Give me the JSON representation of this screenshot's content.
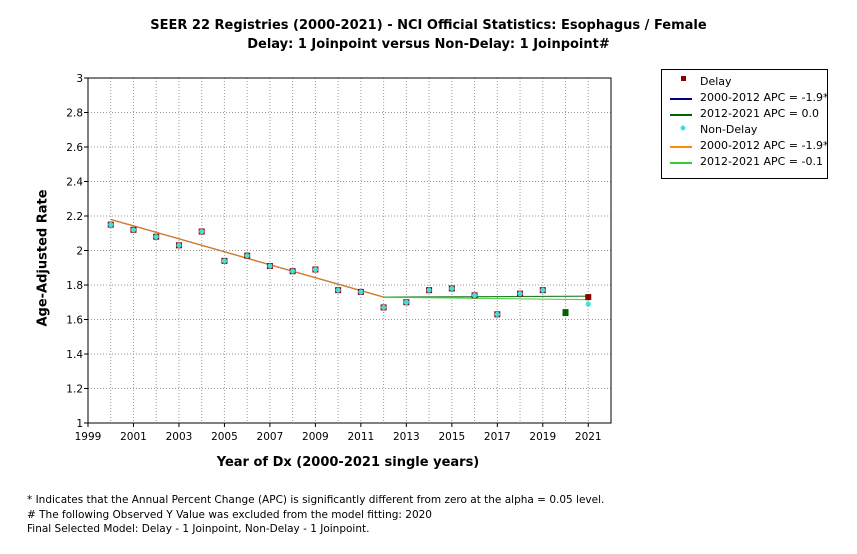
{
  "chart_data": {
    "type": "line",
    "title": "SEER 22 Registries (2000-2021) - NCI Official Statistics: Esophagus / Female",
    "subtitle": "Delay: 1 Joinpoint  versus  Non-Delay: 1 Joinpoint#",
    "xlabel": "Year of Dx (2000-2021 single years)",
    "ylabel": "Age-Adjusted Rate",
    "xlim": [
      1999,
      2022
    ],
    "ylim": [
      1,
      3
    ],
    "xticks": [
      1999,
      2001,
      2003,
      2005,
      2007,
      2009,
      2011,
      2013,
      2015,
      2017,
      2019,
      2021
    ],
    "yticks": [
      1,
      1.2,
      1.4,
      1.6,
      1.8,
      2,
      2.2,
      2.4,
      2.6,
      2.8,
      3
    ],
    "grid": true,
    "legend_position": "top-right",
    "series": [
      {
        "name": "Delay",
        "kind": "points",
        "color": "#8b0000",
        "points": [
          {
            "x": 2000,
            "y": 2.15
          },
          {
            "x": 2001,
            "y": 2.12
          },
          {
            "x": 2002,
            "y": 2.08
          },
          {
            "x": 2003,
            "y": 2.03
          },
          {
            "x": 2004,
            "y": 2.11
          },
          {
            "x": 2005,
            "y": 1.94
          },
          {
            "x": 2006,
            "y": 1.97
          },
          {
            "x": 2007,
            "y": 1.91
          },
          {
            "x": 2008,
            "y": 1.88
          },
          {
            "x": 2009,
            "y": 1.89
          },
          {
            "x": 2010,
            "y": 1.77
          },
          {
            "x": 2011,
            "y": 1.76
          },
          {
            "x": 2012,
            "y": 1.67
          },
          {
            "x": 2013,
            "y": 1.7
          },
          {
            "x": 2014,
            "y": 1.77
          },
          {
            "x": 2015,
            "y": 1.78
          },
          {
            "x": 2016,
            "y": 1.74
          },
          {
            "x": 2017,
            "y": 1.63
          },
          {
            "x": 2018,
            "y": 1.75
          },
          {
            "x": 2019,
            "y": 1.77
          },
          {
            "x": 2021,
            "y": 1.73
          }
        ]
      },
      {
        "name": "2000-2012 APC  =  -1.9*",
        "kind": "line",
        "color": "#00008b",
        "points": [
          {
            "x": 2000,
            "y": 2.18
          },
          {
            "x": 2012,
            "y": 1.73
          }
        ]
      },
      {
        "name": "2012-2021 APC  =  0.0",
        "kind": "line",
        "color": "#006400",
        "points": [
          {
            "x": 2012,
            "y": 1.73
          },
          {
            "x": 2021,
            "y": 1.735
          }
        ]
      },
      {
        "name": "Non-Delay",
        "kind": "points",
        "color": "#40e0e0",
        "points": [
          {
            "x": 2000,
            "y": 2.15
          },
          {
            "x": 2001,
            "y": 2.12
          },
          {
            "x": 2002,
            "y": 2.08
          },
          {
            "x": 2003,
            "y": 2.03
          },
          {
            "x": 2004,
            "y": 2.11
          },
          {
            "x": 2005,
            "y": 1.94
          },
          {
            "x": 2006,
            "y": 1.97
          },
          {
            "x": 2007,
            "y": 1.91
          },
          {
            "x": 2008,
            "y": 1.88
          },
          {
            "x": 2009,
            "y": 1.89
          },
          {
            "x": 2010,
            "y": 1.77
          },
          {
            "x": 2011,
            "y": 1.76
          },
          {
            "x": 2012,
            "y": 1.67
          },
          {
            "x": 2013,
            "y": 1.7
          },
          {
            "x": 2014,
            "y": 1.77
          },
          {
            "x": 2015,
            "y": 1.78
          },
          {
            "x": 2016,
            "y": 1.74
          },
          {
            "x": 2017,
            "y": 1.63
          },
          {
            "x": 2018,
            "y": 1.75
          },
          {
            "x": 2019,
            "y": 1.77
          },
          {
            "x": 2021,
            "y": 1.69
          }
        ]
      },
      {
        "name": "2000-2012 APC  =  -1.9*",
        "kind": "line",
        "color": "#ff8c00",
        "points": [
          {
            "x": 2000,
            "y": 2.18
          },
          {
            "x": 2012,
            "y": 1.73
          }
        ]
      },
      {
        "name": "2012-2021 APC  =  -0.1",
        "kind": "line",
        "color": "#32cd32",
        "points": [
          {
            "x": 2012,
            "y": 1.73
          },
          {
            "x": 2021,
            "y": 1.715
          }
        ]
      }
    ],
    "excluded_points": [
      {
        "x": 2020,
        "y": 1.64,
        "color": "#006400"
      }
    ]
  },
  "footnotes": {
    "line1": "* Indicates that the Annual Percent Change (APC) is significantly different from zero at the alpha = 0.05 level.",
    "line2": " # The following Observed Y Value was excluded from the model fitting: 2020",
    "line3": "Final Selected Model: Delay - 1 Joinpoint, Non-Delay - 1 Joinpoint."
  }
}
